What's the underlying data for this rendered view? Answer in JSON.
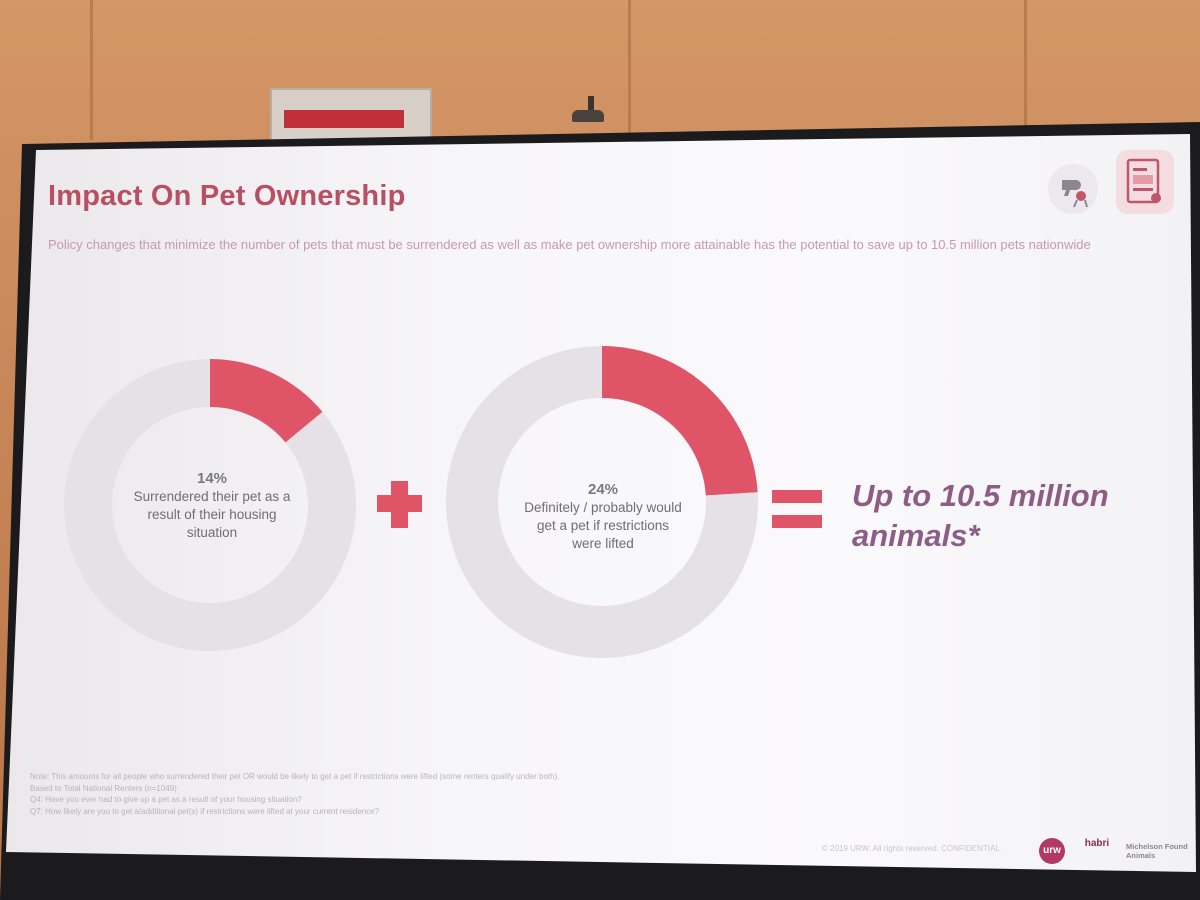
{
  "slide": {
    "title": "Impact On Pet Ownership",
    "subtitle": "Policy changes that minimize the number of pets that must be surrendered as well as make pet ownership more attainable has the potential to save up to 10.5 million pets nationwide",
    "operator_plus": "+",
    "operator_equals": "=",
    "result": "Up to 10.5 million animals*",
    "footnotes": [
      "Note: This amounts for all people who surrendered their pet OR would be likely to get a pet if restrictions were lifted (some renters qualify under both).",
      "Based to Total National Renters (n=1049)",
      "Q4: Have you ever had to give up a pet as a result of your housing situation?",
      "Q7: How likely are you to get a/additional pet(s) if restrictions were lifted at your current residence?"
    ],
    "copyright": "© 2019 URW. All rights reserved. CONFIDENTIAL.",
    "logos": {
      "urw": "urw",
      "habri": "habri",
      "michelson": "Michelson Found Animals"
    },
    "icons": [
      "dog-hair-dryer-icon",
      "document-icon"
    ]
  },
  "colors": {
    "accent": "#e05468",
    "track": "#e6e1e7",
    "title": "#b84f62",
    "result": "#8e5d86"
  },
  "chart_data": [
    {
      "type": "pie",
      "variant": "donut",
      "labels": [
        "Surrendered their pet as a result of their housing situation",
        "Other"
      ],
      "values": [
        14,
        86
      ],
      "display_value": "14%",
      "label": "Surrendered their pet as a result of their housing situation"
    },
    {
      "type": "pie",
      "variant": "donut",
      "labels": [
        "Definitely / probably would get a pet if restrictions were lifted",
        "Other"
      ],
      "values": [
        24,
        76
      ],
      "display_value": "24%",
      "label": "Definitely / probably would get a pet if restrictions were lifted"
    }
  ]
}
